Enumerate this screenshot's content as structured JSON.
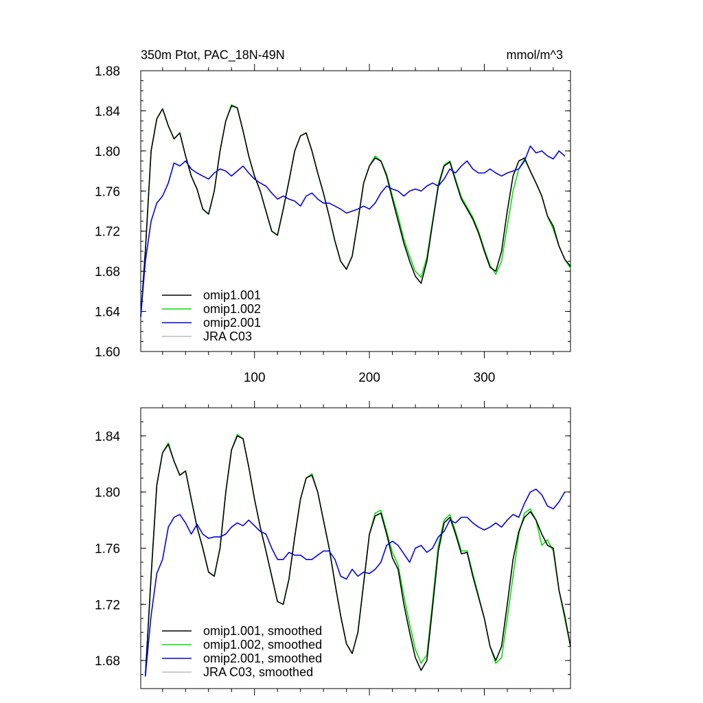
{
  "chart_data": [
    {
      "type": "line",
      "title": "350m Ptot, PAC_18N-49N",
      "units": "mmol/m^3",
      "xlim": [
        1,
        375
      ],
      "ylim": [
        1.6,
        1.88
      ],
      "yticks": [
        1.6,
        1.64,
        1.68,
        1.72,
        1.76,
        1.8,
        1.84,
        1.88
      ],
      "ytick_labels": [
        "1.60",
        "1.64",
        "1.68",
        "1.72",
        "1.76",
        "1.80",
        "1.84",
        "1.88"
      ],
      "xticks": [
        100,
        200,
        300
      ],
      "xtick_labels": [
        "100",
        "200",
        "300"
      ],
      "legend_position": "bottom-left",
      "series": [
        {
          "name": "omip1.001",
          "color": "#000000",
          "x": [
            1,
            5,
            10,
            15,
            20,
            25,
            30,
            35,
            40,
            45,
            50,
            55,
            60,
            65,
            70,
            75,
            80,
            85,
            90,
            95,
            100,
            105,
            110,
            115,
            120,
            125,
            130,
            135,
            140,
            145,
            150,
            155,
            160,
            165,
            170,
            175,
            180,
            185,
            190,
            195,
            200,
            205,
            210,
            215,
            220,
            225,
            230,
            235,
            240,
            245,
            250,
            255,
            260,
            265,
            270,
            275,
            280,
            285,
            290,
            295,
            300,
            305,
            310,
            315,
            320,
            325,
            330,
            335,
            340,
            345,
            350,
            355,
            360,
            365,
            370,
            375
          ],
          "y": [
            1.635,
            1.7,
            1.8,
            1.832,
            1.842,
            1.825,
            1.812,
            1.818,
            1.795,
            1.775,
            1.762,
            1.742,
            1.737,
            1.76,
            1.8,
            1.83,
            1.845,
            1.843,
            1.82,
            1.795,
            1.775,
            1.76,
            1.74,
            1.72,
            1.716,
            1.742,
            1.77,
            1.8,
            1.815,
            1.818,
            1.8,
            1.778,
            1.758,
            1.735,
            1.71,
            1.69,
            1.682,
            1.695,
            1.73,
            1.768,
            1.785,
            1.793,
            1.79,
            1.775,
            1.752,
            1.73,
            1.708,
            1.69,
            1.675,
            1.668,
            1.69,
            1.728,
            1.765,
            1.785,
            1.789,
            1.77,
            1.752,
            1.742,
            1.732,
            1.718,
            1.7,
            1.684,
            1.68,
            1.7,
            1.74,
            1.775,
            1.79,
            1.793,
            1.78,
            1.768,
            1.755,
            1.735,
            1.725,
            1.705,
            1.692,
            1.685
          ]
        },
        {
          "name": "omip1.002",
          "color": "#00e000",
          "x": [
            1,
            5,
            10,
            15,
            20,
            25,
            30,
            35,
            40,
            45,
            50,
            55,
            60,
            65,
            70,
            75,
            80,
            85,
            90,
            95,
            100,
            105,
            110,
            115,
            120,
            125,
            130,
            135,
            140,
            145,
            150,
            155,
            160,
            165,
            170,
            175,
            180,
            185,
            190,
            195,
            200,
            205,
            210,
            215,
            220,
            225,
            230,
            235,
            240,
            245,
            250,
            255,
            260,
            265,
            270,
            275,
            280,
            285,
            290,
            295,
            300,
            305,
            310,
            315,
            320,
            325,
            330,
            335,
            340,
            345,
            350,
            355,
            360,
            365,
            370,
            375
          ],
          "y": [
            1.635,
            1.7,
            1.8,
            1.832,
            1.842,
            1.825,
            1.812,
            1.818,
            1.795,
            1.775,
            1.762,
            1.742,
            1.737,
            1.76,
            1.8,
            1.83,
            1.846,
            1.843,
            1.82,
            1.795,
            1.775,
            1.76,
            1.74,
            1.72,
            1.716,
            1.742,
            1.77,
            1.8,
            1.815,
            1.818,
            1.8,
            1.778,
            1.758,
            1.735,
            1.71,
            1.69,
            1.682,
            1.695,
            1.73,
            1.768,
            1.785,
            1.795,
            1.79,
            1.777,
            1.755,
            1.735,
            1.712,
            1.695,
            1.68,
            1.674,
            1.694,
            1.73,
            1.767,
            1.786,
            1.79,
            1.772,
            1.754,
            1.744,
            1.734,
            1.72,
            1.702,
            1.686,
            1.677,
            1.69,
            1.725,
            1.76,
            1.782,
            1.792,
            1.78,
            1.768,
            1.755,
            1.735,
            1.722,
            1.705,
            1.692,
            1.683
          ]
        },
        {
          "name": "omip2.001",
          "color": "#0000e0",
          "x": [
            1,
            5,
            10,
            15,
            20,
            25,
            30,
            35,
            40,
            45,
            50,
            55,
            60,
            65,
            70,
            75,
            80,
            85,
            90,
            95,
            100,
            105,
            110,
            115,
            120,
            125,
            130,
            135,
            140,
            145,
            150,
            155,
            160,
            165,
            170,
            175,
            180,
            185,
            190,
            195,
            200,
            205,
            210,
            215,
            220,
            225,
            230,
            235,
            240,
            245,
            250,
            255,
            260,
            265,
            270,
            275,
            280,
            285,
            290,
            295,
            300,
            305,
            310,
            315,
            320,
            325,
            330,
            335,
            340,
            345,
            350,
            355,
            360,
            365,
            370
          ],
          "y": [
            1.635,
            1.69,
            1.73,
            1.748,
            1.755,
            1.768,
            1.788,
            1.785,
            1.79,
            1.782,
            1.778,
            1.775,
            1.772,
            1.778,
            1.782,
            1.78,
            1.775,
            1.78,
            1.785,
            1.778,
            1.772,
            1.768,
            1.765,
            1.758,
            1.752,
            1.755,
            1.752,
            1.75,
            1.745,
            1.755,
            1.758,
            1.752,
            1.748,
            1.748,
            1.745,
            1.742,
            1.738,
            1.74,
            1.742,
            1.745,
            1.742,
            1.748,
            1.758,
            1.765,
            1.762,
            1.76,
            1.755,
            1.76,
            1.762,
            1.76,
            1.765,
            1.768,
            1.765,
            1.772,
            1.782,
            1.778,
            1.785,
            1.79,
            1.782,
            1.778,
            1.778,
            1.782,
            1.778,
            1.775,
            1.778,
            1.78,
            1.782,
            1.79,
            1.805,
            1.798,
            1.8,
            1.795,
            1.792,
            1.8,
            1.795
          ]
        },
        {
          "name": "JRA C03",
          "color": "#bbbbbb",
          "x": [],
          "y": []
        }
      ]
    },
    {
      "type": "line",
      "title": "",
      "xlim": [
        1,
        375
      ],
      "ylim": [
        1.66,
        1.86
      ],
      "yticks": [
        1.68,
        1.72,
        1.76,
        1.8,
        1.84
      ],
      "ytick_labels": [
        "1.68",
        "1.72",
        "1.76",
        "1.80",
        "1.84"
      ],
      "xticks": [
        100,
        200,
        300
      ],
      "xtick_labels": [
        "",
        "",
        ""
      ],
      "legend_position": "bottom-left",
      "series": [
        {
          "name": "omip1.001, smoothed",
          "color": "#000000",
          "x": [
            5,
            10,
            15,
            20,
            25,
            30,
            35,
            40,
            45,
            50,
            55,
            60,
            65,
            70,
            75,
            80,
            85,
            90,
            95,
            100,
            105,
            110,
            115,
            120,
            125,
            130,
            135,
            140,
            145,
            150,
            155,
            160,
            165,
            170,
            175,
            180,
            185,
            190,
            195,
            200,
            205,
            210,
            215,
            220,
            225,
            230,
            235,
            240,
            245,
            250,
            255,
            260,
            265,
            270,
            275,
            280,
            285,
            290,
            295,
            300,
            305,
            310,
            315,
            320,
            325,
            330,
            335,
            340,
            345,
            350,
            355,
            360,
            365,
            370,
            375
          ],
          "y": [
            1.669,
            1.74,
            1.805,
            1.828,
            1.834,
            1.822,
            1.812,
            1.815,
            1.795,
            1.775,
            1.76,
            1.743,
            1.74,
            1.76,
            1.8,
            1.83,
            1.84,
            1.838,
            1.818,
            1.795,
            1.775,
            1.758,
            1.74,
            1.722,
            1.72,
            1.738,
            1.768,
            1.795,
            1.81,
            1.812,
            1.8,
            1.78,
            1.76,
            1.735,
            1.712,
            1.692,
            1.685,
            1.7,
            1.735,
            1.77,
            1.783,
            1.785,
            1.77,
            1.753,
            1.745,
            1.72,
            1.7,
            1.682,
            1.673,
            1.68,
            1.718,
            1.758,
            1.778,
            1.782,
            1.77,
            1.756,
            1.757,
            1.74,
            1.725,
            1.71,
            1.69,
            1.68,
            1.69,
            1.72,
            1.752,
            1.772,
            1.782,
            1.786,
            1.78,
            1.77,
            1.762,
            1.76,
            1.73,
            1.712,
            1.69
          ]
        },
        {
          "name": "omip1.002, smoothed",
          "color": "#00e000",
          "x": [
            5,
            10,
            15,
            20,
            25,
            30,
            35,
            40,
            45,
            50,
            55,
            60,
            65,
            70,
            75,
            80,
            85,
            90,
            95,
            100,
            105,
            110,
            115,
            120,
            125,
            130,
            135,
            140,
            145,
            150,
            155,
            160,
            165,
            170,
            175,
            180,
            185,
            190,
            195,
            200,
            205,
            210,
            215,
            220,
            225,
            230,
            235,
            240,
            245,
            250,
            255,
            260,
            265,
            270,
            275,
            280,
            285,
            290,
            295,
            300,
            305,
            310,
            315,
            320,
            325,
            330,
            335,
            340,
            345,
            350,
            355,
            360,
            365,
            370,
            375
          ],
          "y": [
            1.669,
            1.74,
            1.805,
            1.828,
            1.835,
            1.822,
            1.812,
            1.815,
            1.795,
            1.775,
            1.76,
            1.743,
            1.74,
            1.76,
            1.8,
            1.83,
            1.841,
            1.838,
            1.818,
            1.795,
            1.775,
            1.758,
            1.74,
            1.722,
            1.72,
            1.738,
            1.768,
            1.795,
            1.81,
            1.813,
            1.8,
            1.78,
            1.76,
            1.735,
            1.712,
            1.692,
            1.685,
            1.7,
            1.735,
            1.77,
            1.785,
            1.787,
            1.772,
            1.757,
            1.748,
            1.726,
            1.706,
            1.688,
            1.678,
            1.684,
            1.722,
            1.762,
            1.78,
            1.784,
            1.772,
            1.758,
            1.758,
            1.742,
            1.726,
            1.71,
            1.69,
            1.678,
            1.682,
            1.71,
            1.74,
            1.77,
            1.785,
            1.788,
            1.78,
            1.762,
            1.766,
            1.758,
            1.73,
            1.71,
            1.69
          ]
        },
        {
          "name": "omip2.001, smoothed",
          "color": "#0000e0",
          "x": [
            5,
            10,
            15,
            20,
            25,
            30,
            35,
            40,
            45,
            50,
            55,
            60,
            65,
            70,
            75,
            80,
            85,
            90,
            95,
            100,
            105,
            110,
            115,
            120,
            125,
            130,
            135,
            140,
            145,
            150,
            155,
            160,
            165,
            170,
            175,
            180,
            185,
            190,
            195,
            200,
            205,
            210,
            215,
            220,
            225,
            230,
            235,
            240,
            245,
            250,
            255,
            260,
            265,
            270,
            275,
            280,
            285,
            290,
            295,
            300,
            305,
            310,
            315,
            320,
            325,
            330,
            335,
            340,
            345,
            350,
            355,
            360,
            365,
            370
          ],
          "y": [
            1.669,
            1.712,
            1.742,
            1.752,
            1.775,
            1.782,
            1.784,
            1.778,
            1.77,
            1.777,
            1.77,
            1.767,
            1.768,
            1.768,
            1.77,
            1.775,
            1.778,
            1.776,
            1.78,
            1.776,
            1.772,
            1.77,
            1.76,
            1.752,
            1.752,
            1.757,
            1.755,
            1.755,
            1.752,
            1.752,
            1.755,
            1.758,
            1.758,
            1.752,
            1.74,
            1.738,
            1.745,
            1.74,
            1.743,
            1.742,
            1.745,
            1.75,
            1.762,
            1.765,
            1.762,
            1.756,
            1.75,
            1.76,
            1.762,
            1.757,
            1.76,
            1.768,
            1.772,
            1.78,
            1.778,
            1.782,
            1.782,
            1.778,
            1.775,
            1.773,
            1.775,
            1.778,
            1.775,
            1.78,
            1.784,
            1.782,
            1.792,
            1.8,
            1.802,
            1.798,
            1.79,
            1.788,
            1.793,
            1.8
          ]
        },
        {
          "name": "JRA C03, smoothed",
          "color": "#bbbbbb",
          "x": [],
          "y": []
        }
      ]
    }
  ]
}
